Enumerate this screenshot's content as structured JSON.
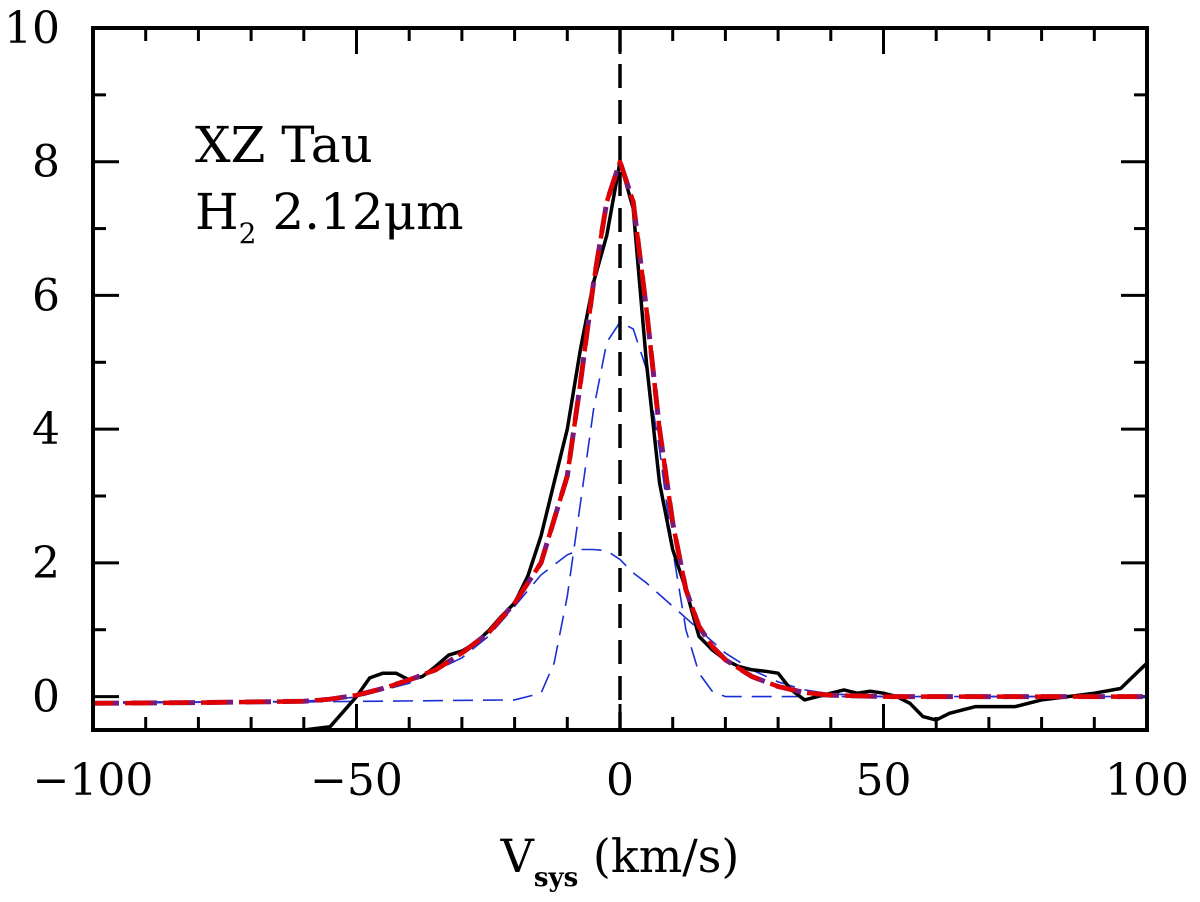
{
  "chart_data": {
    "type": "line",
    "title": "",
    "annotations": {
      "object": "XZ Tau",
      "line_prefix": "H",
      "line_sub": "2",
      "line_suffix": " 2.12μm"
    },
    "xlabel": {
      "main": "V",
      "sub": "sys",
      "units": " (km/s)"
    },
    "ylabel": "",
    "xlim": [
      -100,
      100
    ],
    "ylim": [
      -0.5,
      10
    ],
    "xticks": [
      -100,
      -50,
      0,
      50,
      100
    ],
    "xtick_labels": [
      "−100",
      "−50",
      "0",
      "50",
      "100"
    ],
    "yticks": [
      0,
      2,
      4,
      6,
      8,
      10
    ],
    "ytick_labels": [
      "0",
      "2",
      "4",
      "6",
      "8",
      "10"
    ],
    "x_minor_step": 10,
    "y_minor_step": 1,
    "grid": false,
    "vline_x": 0,
    "colors": {
      "observed": "#000000",
      "fit_total": "#e00000",
      "fit_total_overlay": "#7a1a7a",
      "component": "#1a2ed6",
      "axis": "#000000"
    },
    "series": [
      {
        "name": "observed",
        "style": "solid",
        "x": [
          -60,
          -55,
          -50,
          -47.5,
          -45,
          -42.5,
          -40,
          -37.5,
          -35,
          -32.5,
          -30,
          -27.5,
          -25,
          -22.5,
          -20,
          -17.5,
          -15,
          -12.5,
          -10,
          -7.5,
          -5,
          -2.5,
          0,
          2.5,
          5,
          7.5,
          10,
          12.5,
          15,
          17.5,
          20,
          22.5,
          25,
          27.5,
          30,
          32.5,
          35,
          37.5,
          40,
          42.5,
          45,
          47.5,
          50,
          52.5,
          55,
          57.5,
          60,
          62.5,
          65,
          67.5,
          70,
          75,
          80,
          85,
          90,
          95,
          100
        ],
        "y": [
          -0.5,
          -0.45,
          0.0,
          0.28,
          0.35,
          0.35,
          0.25,
          0.3,
          0.45,
          0.62,
          0.68,
          0.8,
          0.98,
          1.2,
          1.4,
          1.8,
          2.4,
          3.2,
          4.0,
          5.2,
          6.2,
          6.9,
          8.0,
          7.3,
          5.0,
          3.2,
          2.2,
          1.6,
          0.9,
          0.7,
          0.55,
          0.45,
          0.4,
          0.38,
          0.35,
          0.1,
          -0.05,
          0.0,
          0.05,
          0.1,
          0.05,
          0.08,
          0.05,
          0.0,
          -0.1,
          -0.3,
          -0.35,
          -0.25,
          -0.2,
          -0.15,
          -0.15,
          -0.15,
          -0.05,
          0.0,
          0.05,
          0.12,
          0.5
        ]
      },
      {
        "name": "fit_total",
        "style": "dashed",
        "x": [
          -100,
          -80,
          -60,
          -55,
          -50,
          -45,
          -40,
          -35,
          -30,
          -25,
          -20,
          -15,
          -10,
          -7.5,
          -5,
          -2.5,
          0,
          2.5,
          5,
          7.5,
          10,
          12.5,
          15,
          17.5,
          20,
          25,
          30,
          35,
          40,
          50,
          60,
          80,
          100
        ],
        "y": [
          -0.1,
          -0.09,
          -0.07,
          -0.04,
          0.02,
          0.12,
          0.25,
          0.4,
          0.65,
          0.95,
          1.4,
          2.0,
          3.3,
          4.7,
          6.2,
          7.4,
          8.0,
          7.4,
          5.8,
          4.0,
          2.6,
          1.6,
          1.05,
          0.75,
          0.55,
          0.3,
          0.15,
          0.06,
          0.02,
          0.0,
          0.0,
          0.0,
          0.0
        ]
      },
      {
        "name": "narrow_component",
        "style": "dashed-thin",
        "x": [
          -100,
          -60,
          -20,
          -15,
          -12.5,
          -10,
          -7.5,
          -5,
          -2.5,
          0,
          2.5,
          5,
          7.5,
          10,
          12.5,
          15,
          17.5,
          20,
          30,
          60,
          100
        ],
        "y": [
          -0.08,
          -0.08,
          -0.05,
          0.05,
          0.5,
          1.5,
          2.9,
          4.3,
          5.3,
          5.6,
          5.5,
          4.9,
          3.7,
          2.2,
          1.0,
          0.35,
          0.08,
          0.0,
          0.0,
          0.0,
          0.0
        ]
      },
      {
        "name": "broad_component",
        "style": "dashed-thin",
        "x": [
          -100,
          -60,
          -50,
          -40,
          -30,
          -25,
          -20,
          -15,
          -10,
          -7.5,
          -5,
          -2.5,
          0,
          2.5,
          5,
          10,
          15,
          20,
          25,
          30,
          35,
          40,
          50,
          60,
          100
        ],
        "y": [
          -0.1,
          -0.07,
          -0.01,
          0.2,
          0.58,
          0.9,
          1.35,
          1.82,
          2.12,
          2.2,
          2.2,
          2.18,
          2.05,
          1.85,
          1.7,
          1.35,
          1.0,
          0.65,
          0.4,
          0.22,
          0.1,
          0.04,
          0.0,
          0.0,
          0.0
        ]
      }
    ]
  }
}
